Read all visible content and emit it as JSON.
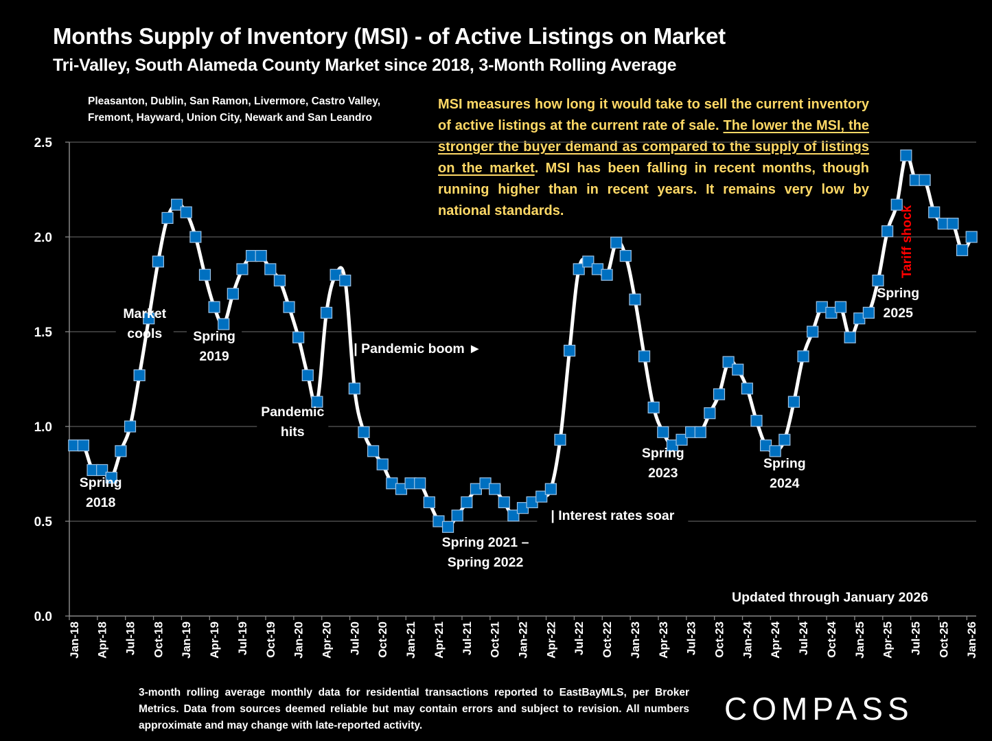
{
  "header": {
    "title": "Months Supply of Inventory (MSI) - of Active Listings on Market",
    "subtitle": "Tri-Valley, South Alameda County Market since 2018, 3-Month Rolling Average",
    "regions_line1": "Pleasanton, Dublin, San Ramon, Livermore, Castro Valley,",
    "regions_line2": "Fremont, Hayward, Union City, Newark and San Leandro"
  },
  "explanation": {
    "part1": "MSI measures how long it would take to sell the current inventory of active listings at the current rate of sale. ",
    "underlined": "The lower the MSI, the stronger the buyer demand as compared to the supply of listings on the market",
    "part2": ". MSI has been falling in recent months, though running higher than in recent years. It remains very low by national standards."
  },
  "updated_note": "Updated through January 2026",
  "footnote": "3-month rolling average monthly data for residential transactions reported to EastBayMLS, per Broker Metrics. Data from sources deemed reliable but may contain errors and subject to revision. All numbers approximate and may change with late-reported activity.",
  "brand": {
    "logo_text": "COMPASS"
  },
  "colors": {
    "background": "#000000",
    "line": "#FFFFFF",
    "marker_fill": "#0070C0",
    "marker_border": "#9DC3E6",
    "note_text": "#FFD966",
    "tariff_text": "#FF0000",
    "gridline": "#595959"
  },
  "chart_data": {
    "type": "line",
    "title": "Months Supply of Inventory (MSI) - of Active Listings on Market",
    "xlabel": "",
    "ylabel": "",
    "ylim": [
      0,
      2.5
    ],
    "yticks": [
      "0.0",
      "0.5",
      "1.0",
      "1.5",
      "2.0",
      "2.5"
    ],
    "grid": true,
    "x_start": "Jan-18",
    "x_tick_labels": [
      "Jan-18",
      "Apr-18",
      "Jul-18",
      "Oct-18",
      "Jan-19",
      "Apr-19",
      "Jul-19",
      "Oct-19",
      "Jan-20",
      "Apr-20",
      "Jul-20",
      "Oct-20",
      "Jan-21",
      "Apr-21",
      "Jul-21",
      "Oct-21",
      "Jan-22",
      "Apr-22",
      "Jul-22",
      "Oct-22",
      "Jan-23",
      "Apr-23",
      "Jul-23",
      "Oct-23",
      "Jan-24",
      "Apr-24",
      "Jul-24",
      "Oct-24",
      "Jan-25",
      "Apr-25",
      "Jul-25",
      "Oct-25",
      "Jan-26"
    ],
    "series": [
      {
        "name": "MSI 3-month rolling average",
        "values": [
          0.9,
          0.9,
          0.77,
          0.77,
          0.73,
          0.87,
          1.0,
          1.27,
          1.57,
          1.87,
          2.1,
          2.17,
          2.13,
          2.0,
          1.8,
          1.63,
          1.54,
          1.7,
          1.83,
          1.9,
          1.9,
          1.83,
          1.77,
          1.63,
          1.47,
          1.27,
          1.13,
          1.6,
          1.8,
          1.77,
          1.2,
          0.97,
          0.87,
          0.8,
          0.7,
          0.67,
          0.7,
          0.7,
          0.6,
          0.5,
          0.47,
          0.53,
          0.6,
          0.67,
          0.7,
          0.67,
          0.6,
          0.53,
          0.57,
          0.6,
          0.63,
          0.67,
          0.93,
          1.4,
          1.83,
          1.87,
          1.83,
          1.8,
          1.97,
          1.9,
          1.67,
          1.37,
          1.1,
          0.97,
          0.9,
          0.93,
          0.97,
          0.97,
          1.07,
          1.17,
          1.34,
          1.3,
          1.2,
          1.03,
          0.9,
          0.87,
          0.93,
          1.13,
          1.37,
          1.5,
          1.63,
          1.6,
          1.63,
          1.47,
          1.57,
          1.6,
          1.77,
          2.03,
          2.17,
          2.43,
          2.3,
          2.3,
          2.13,
          2.07,
          2.07,
          1.93,
          2.0
        ]
      }
    ],
    "annotations": [
      {
        "text": [
          "Spring",
          "2018"
        ],
        "at_index": 3
      },
      {
        "text": [
          "Market",
          "cools"
        ],
        "at_index": 8
      },
      {
        "text": [
          "Spring",
          "2019"
        ],
        "at_index": 15
      },
      {
        "text": [
          "Pandemic",
          "hits"
        ],
        "at_index": 25
      },
      {
        "text": [
          "| Pandemic boom ►"
        ],
        "at_index": 30
      },
      {
        "text": [
          "Spring 2021 –",
          "Spring 2022"
        ],
        "at_index": 44
      },
      {
        "text": [
          "| Interest rates soar"
        ],
        "at_index": 51
      },
      {
        "text": [
          "Spring",
          "2023"
        ],
        "at_index": 63
      },
      {
        "text": [
          "Spring",
          "2024"
        ],
        "at_index": 76
      },
      {
        "text": [
          "Spring",
          "2025"
        ],
        "at_index": 88
      },
      {
        "text": [
          "Tariff shock"
        ],
        "at_index": 89,
        "vertical": true
      }
    ]
  }
}
